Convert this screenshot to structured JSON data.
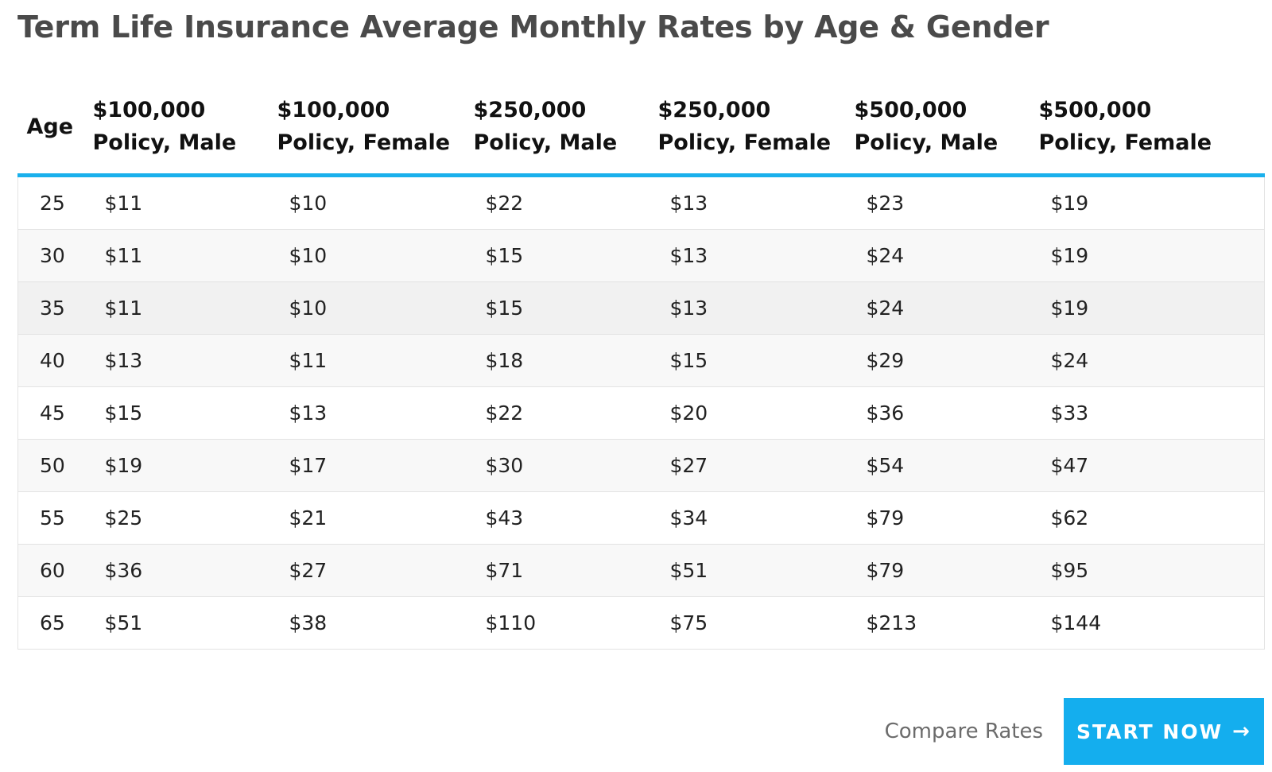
{
  "page": {
    "title": "Term Life Insurance Average Monthly Rates by Age & Gender"
  },
  "table": {
    "headers": [
      [
        "Age"
      ],
      [
        "$100,000",
        "Policy, Male"
      ],
      [
        "$100,000",
        "Policy, Female"
      ],
      [
        "$250,000",
        "Policy, Male"
      ],
      [
        "$250,000",
        "Policy, Female"
      ],
      [
        "$500,000",
        "Policy, Male"
      ],
      [
        "$500,000",
        "Policy, Female"
      ]
    ],
    "rows": [
      [
        "25",
        "$11",
        "$10",
        "$22",
        "$13",
        "$23",
        "$19"
      ],
      [
        "30",
        "$11",
        "$10",
        "$15",
        "$13",
        "$24",
        "$19"
      ],
      [
        "35",
        "$11",
        "$10",
        "$15",
        "$13",
        "$24",
        "$19"
      ],
      [
        "40",
        "$13",
        "$11",
        "$18",
        "$15",
        "$29",
        "$24"
      ],
      [
        "45",
        "$15",
        "$13",
        "$22",
        "$20",
        "$36",
        "$33"
      ],
      [
        "50",
        "$19",
        "$17",
        "$30",
        "$27",
        "$54",
        "$47"
      ],
      [
        "55",
        "$25",
        "$21",
        "$43",
        "$34",
        "$79",
        "$62"
      ],
      [
        "60",
        "$36",
        "$27",
        "$71",
        "$51",
        "$79",
        "$95"
      ],
      [
        "65",
        "$51",
        "$38",
        "$110",
        "$75",
        "$213",
        "$144"
      ]
    ],
    "header_border_color": "#1ab0ec"
  },
  "cta": {
    "compare_label": "Compare Rates",
    "start_label": "START NOW",
    "start_icon": "arrow-right-icon",
    "start_icon_glyph": "→",
    "button_color": "#14aeee"
  }
}
